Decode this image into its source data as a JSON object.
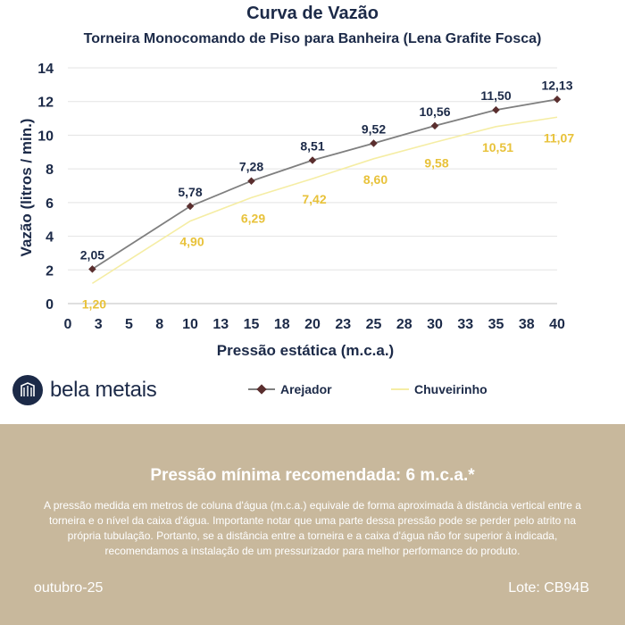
{
  "header": {
    "title": "Curva de Vazão",
    "subtitle": "Torneira Monocomando de Piso para Banheira (Lena Grafite Fosca)"
  },
  "chart_data": {
    "type": "line",
    "xlabel": "Pressão estática (m.c.a.)",
    "ylabel": "Vazão (litros / min.)",
    "xlim": [
      0,
      40
    ],
    "ylim": [
      0,
      14
    ],
    "x_ticks": [
      "0",
      "3",
      "5",
      "8",
      "10",
      "13",
      "15",
      "18",
      "20",
      "23",
      "25",
      "28",
      "30",
      "33",
      "35",
      "38",
      "40"
    ],
    "y_ticks": [
      "0",
      "2",
      "4",
      "6",
      "8",
      "10",
      "12",
      "14"
    ],
    "grid": "horizontal",
    "legend_position": "bottom",
    "series": [
      {
        "name": "Arejador",
        "color": "#7f7f7f",
        "marker_color": "#5a2e2e",
        "x": [
          2,
          10,
          15,
          20,
          25,
          30,
          35,
          40
        ],
        "values": [
          2.05,
          5.78,
          7.28,
          8.51,
          9.52,
          10.56,
          11.5,
          12.13
        ],
        "labels": [
          "2,05",
          "5,78",
          "7,28",
          "8,51",
          "9,52",
          "10,56",
          "11,50",
          "12,13"
        ]
      },
      {
        "name": "Chuveirinho",
        "color": "#f5eda4",
        "label_color": "#e8c23a",
        "x": [
          2,
          10,
          15,
          20,
          25,
          30,
          35,
          40
        ],
        "values": [
          1.2,
          4.9,
          6.29,
          7.42,
          8.6,
          9.58,
          10.51,
          11.07
        ],
        "labels": [
          "1,20",
          "4,90",
          "6,29",
          "7,42",
          "8,60",
          "9,58",
          "10,51",
          "11,07"
        ]
      }
    ]
  },
  "brand": {
    "logo_text": "bela metais",
    "logo_icon": "bela-metais-logo-icon"
  },
  "legend": {
    "items": [
      {
        "label": "Arejador"
      },
      {
        "label": "Chuveirinho"
      }
    ]
  },
  "footer": {
    "heading": "Pressão mínima recomendada: 6 m.c.a.*",
    "note": "A pressão medida em metros de coluna d'água (m.c.a.) equivale de forma aproximada à distância vertical entre a torneira e o nível da caixa d'água. Importante notar que uma parte dessa pressão pode se perder pelo atrito na própria tubulação. Portanto, se a distância entre a torneira e a caixa d'água não for superior à indicada, recomendamos a instalação de um pressurizador para melhor performance do produto.",
    "date": "outubro-25",
    "lot": "Lote: CB94B",
    "background": "#c8b89c"
  }
}
